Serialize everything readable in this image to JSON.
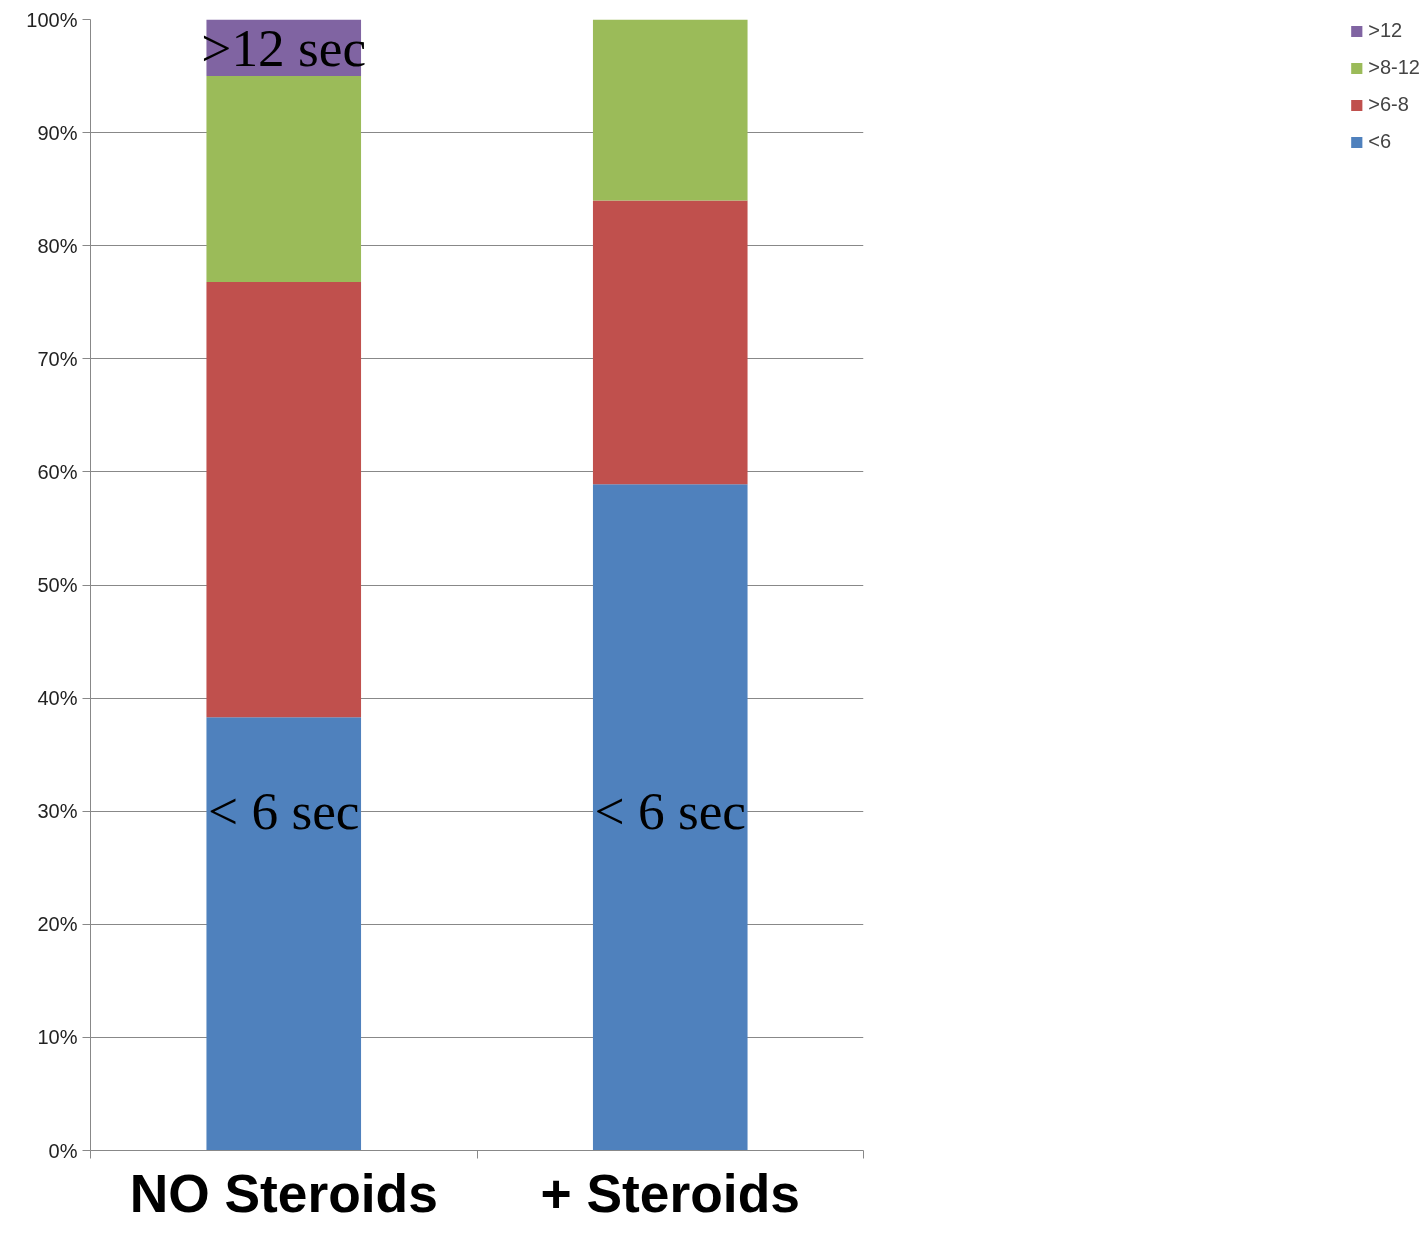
{
  "chart_data": {
    "type": "bar",
    "stacked": true,
    "categories": [
      "NO Steroids",
      "+ Steroids"
    ],
    "series": [
      {
        "name": "<6",
        "color": "#4f81bd",
        "values": [
          38.3,
          58.9
        ]
      },
      {
        "name": ">6-8",
        "color": "#c0504d",
        "values": [
          38.5,
          25.1
        ]
      },
      {
        "name": ">8-12",
        "color": "#9bbb59",
        "values": [
          18.2,
          16.0
        ]
      },
      {
        "name": ">12",
        "color": "#8064a2",
        "values": [
          5.0,
          null
        ]
      }
    ],
    "ylim": [
      0,
      100
    ],
    "yticks": [
      {
        "value": 0,
        "label": "0%"
      },
      {
        "value": 10,
        "label": "10%"
      },
      {
        "value": 20,
        "label": "20%"
      },
      {
        "value": 30,
        "label": "30%"
      },
      {
        "value": 40,
        "label": "40%"
      },
      {
        "value": 50,
        "label": "50%"
      },
      {
        "value": 60,
        "label": "60%"
      },
      {
        "value": 70,
        "label": "70%"
      },
      {
        "value": 80,
        "label": "80%"
      },
      {
        "value": 90,
        "label": "90%"
      },
      {
        "value": 100,
        "label": "100%"
      }
    ],
    "grid": "y",
    "legend": "right",
    "annotations": [
      ">12 sec",
      "< 6 sec",
      "< 6 sec"
    ]
  }
}
